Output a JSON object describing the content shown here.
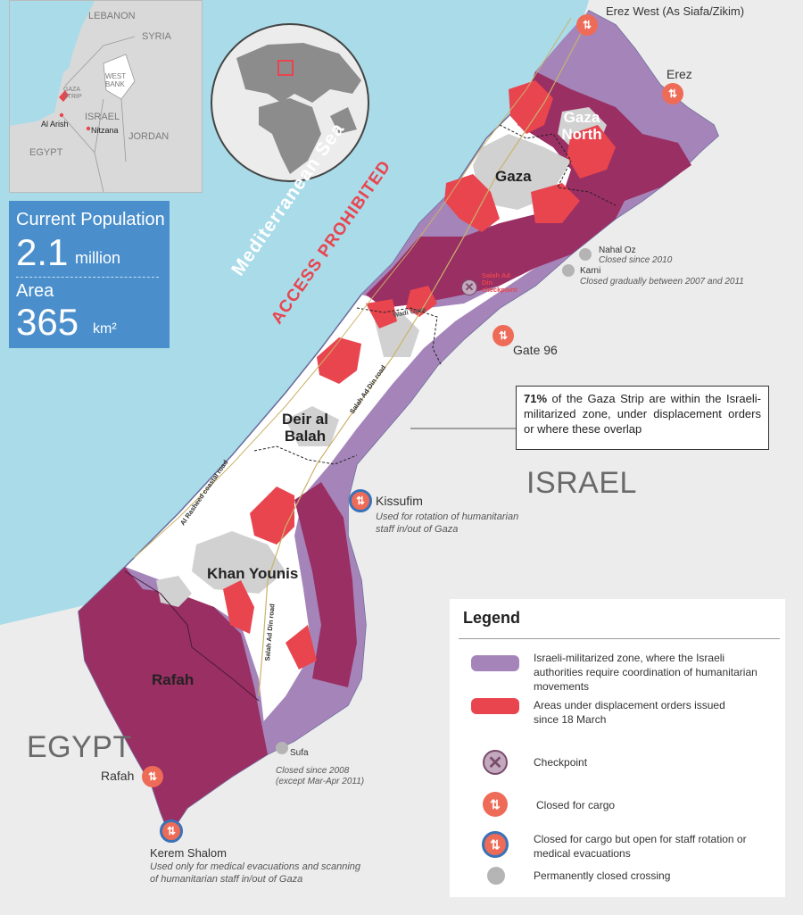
{
  "inset": {
    "labels": [
      "LEBANON",
      "SYRIA",
      "WEST BANK",
      "GAZA STRIP",
      "ISRAEL",
      "JORDAN",
      "EGYPT",
      "Al Arish",
      "Nitzana"
    ]
  },
  "stats": {
    "population_label": "Current Population",
    "population_value": "2.1",
    "population_unit": "million",
    "area_label": "Area",
    "area_value": "365",
    "area_unit": "km²"
  },
  "sea": {
    "name": "Mediterranean Sea",
    "warning": "ACCESS PROHIBITED"
  },
  "regions": {
    "gaza_north": "Gaza North",
    "gaza": "Gaza",
    "deir_al_balah": "Deir al Balah",
    "khan_younis": "Khan Younis",
    "rafah": "Rafah"
  },
  "countries": {
    "israel": "ISRAEL",
    "egypt": "EGYPT"
  },
  "roads": {
    "salah_ad_din_1": "Salah Ad Din road",
    "salah_ad_din_2": "Salah Ad Din road",
    "coastal": "Al Rasheed coastal road",
    "wadi_gaza": "Wadi Gaza",
    "checkpoint": "Salah Ad Din checkpoint"
  },
  "crossings": {
    "erez_west": "Erez West (As Siafa/Zikim)",
    "erez": "Erez",
    "nahal_oz": "Nahal Oz",
    "nahal_oz_note": "Closed since 2010",
    "karni": "Karni",
    "karni_note": "Closed gradually between 2007 and 2011",
    "gate_96": "Gate 96",
    "kissufim": "Kissufim",
    "kissufim_note_1": "Used for rotation of humanitarian",
    "kissufim_note_2": "staff in/out of Gaza",
    "sufa": "Sufa",
    "sufa_note_1": "Closed since  2008",
    "sufa_note_2": "(except Mar-Apr 2011)",
    "rafah": "Rafah",
    "kerem_shalom": "Kerem Shalom",
    "kerem_shalom_note_1": "Used only for medical evacuations and scanning",
    "kerem_shalom_note_2": "of humanitarian staff in/out of Gaza"
  },
  "callout": {
    "percent": "71%",
    "text": " of the Gaza Strip are within the Israeli-militarized zone, under displacement orders or where these overlap"
  },
  "legend": {
    "title": "Legend",
    "items": [
      {
        "text": "Israeli-militarized zone, where the Israeli authorities require coordination of humanitarian movements",
        "symbol": "purple-swatch"
      },
      {
        "text": "Areas under displacement orders issued since 18 March",
        "symbol": "red-swatch"
      },
      {
        "text": "Checkpoint",
        "symbol": "checkpoint-icon"
      },
      {
        "text": "Closed for cargo",
        "symbol": "cargo-icon"
      },
      {
        "text": "Closed for cargo but open for staff rotation or medical evacuations",
        "symbol": "staff-icon"
      },
      {
        "text": "Permanently closed crossing",
        "symbol": "closed-icon"
      }
    ]
  },
  "colors": {
    "sea": "#a9dbe9",
    "land": "#ececec",
    "militarized": "#a585b9",
    "displacement": "#e8454f",
    "overlap": "#9a2f63",
    "urban": "#d1d1d1",
    "stats_box": "#4a8fcc",
    "cargo_icon": "#ee6b58",
    "staff_ring": "#3a72b8"
  }
}
